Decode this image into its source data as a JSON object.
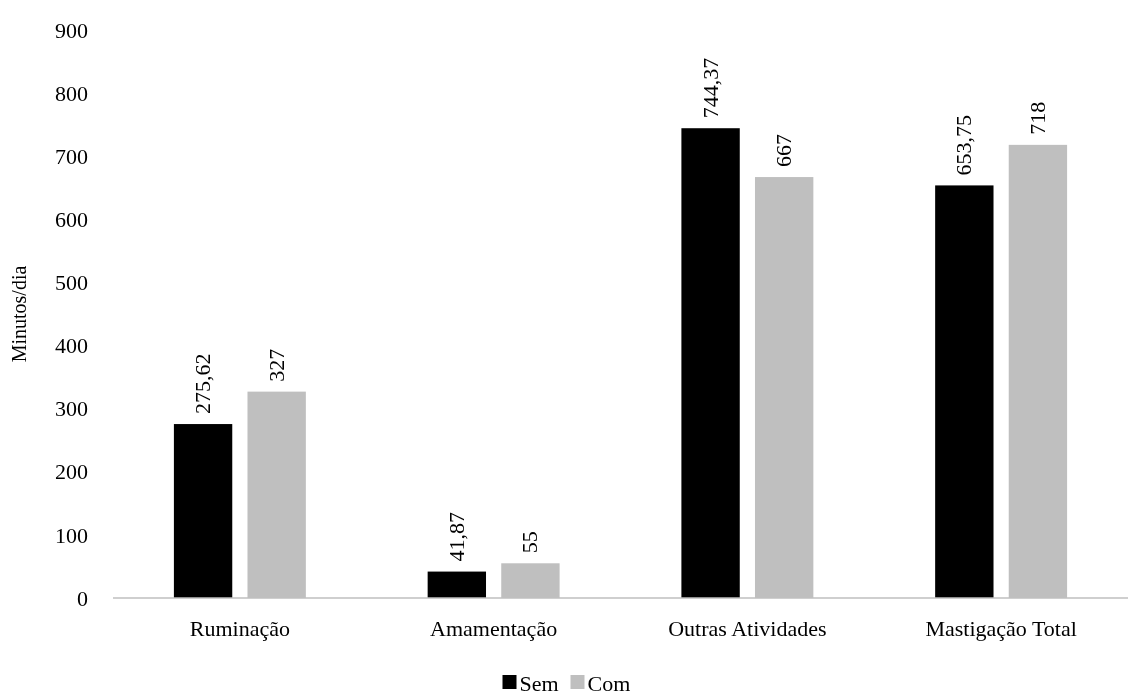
{
  "chart_data": {
    "type": "bar",
    "ylabel": "Minutos/dia",
    "categories": [
      "Ruminação",
      "Amamentação",
      "Outras Atividades",
      "Mastigação Total"
    ],
    "series": [
      {
        "name": "Sem",
        "color": "#000000",
        "values": [
          275.62,
          41.87,
          744.37,
          653.75
        ],
        "value_labels": [
          "275,62",
          "41,87",
          "744,37",
          "653,75"
        ]
      },
      {
        "name": "Com",
        "color": "#bfbfbf",
        "values": [
          327,
          55,
          667,
          718
        ],
        "value_labels": [
          "327",
          "55",
          "667",
          "718"
        ]
      }
    ],
    "ylim": [
      0,
      900
    ],
    "yticks": [
      0,
      100,
      200,
      300,
      400,
      500,
      600,
      700,
      800,
      900
    ],
    "grid": false,
    "legend": "bottom"
  }
}
